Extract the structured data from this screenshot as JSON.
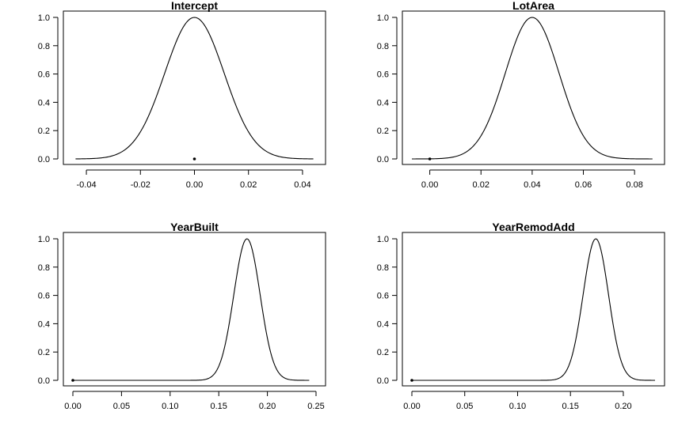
{
  "chart_data": [
    {
      "type": "line",
      "title": "Intercept",
      "xlabel": "",
      "ylabel": "",
      "xlim": [
        -0.045,
        0.045
      ],
      "ylim": [
        0,
        1
      ],
      "x_ticks": [
        -0.04,
        -0.02,
        0.0,
        0.02,
        0.04
      ],
      "x_tick_labels": [
        "-0.04",
        "-0.02",
        "0.00",
        "0.02",
        "0.04"
      ],
      "y_ticks": [
        0.0,
        0.2,
        0.4,
        0.6,
        0.8,
        1.0
      ],
      "y_tick_labels": [
        "0.0",
        "0.2",
        "0.4",
        "0.6",
        "0.8",
        "1.0"
      ],
      "curve": {
        "center": 0.0,
        "sd": 0.011,
        "peak": 1.0,
        "x_range": [
          -0.044,
          0.044
        ]
      },
      "point": {
        "x": 0.0,
        "y": 0.0
      }
    },
    {
      "type": "line",
      "title": "LotArea",
      "xlabel": "",
      "ylabel": "",
      "xlim": [
        -0.007,
        0.088
      ],
      "ylim": [
        0,
        1
      ],
      "x_ticks": [
        0.0,
        0.02,
        0.04,
        0.06,
        0.08
      ],
      "x_tick_labels": [
        "0.00",
        "0.02",
        "0.04",
        "0.06",
        "0.08"
      ],
      "y_ticks": [
        0.0,
        0.2,
        0.4,
        0.6,
        0.8,
        1.0
      ],
      "y_tick_labels": [
        "0.0",
        "0.2",
        "0.4",
        "0.6",
        "0.8",
        "1.0"
      ],
      "curve": {
        "center": 0.04,
        "sd": 0.0105,
        "peak": 1.0,
        "x_range": [
          -0.007,
          0.087
        ]
      },
      "point": {
        "x": 0.0,
        "y": 0.0
      }
    },
    {
      "type": "line",
      "title": "YearBuilt",
      "xlabel": "",
      "ylabel": "",
      "xlim": [
        0.0,
        0.25
      ],
      "ylim": [
        0,
        1
      ],
      "x_ticks": [
        0.0,
        0.05,
        0.1,
        0.15,
        0.2,
        0.25
      ],
      "x_tick_labels": [
        "0.00",
        "0.05",
        "0.10",
        "0.15",
        "0.20",
        "0.25"
      ],
      "y_ticks": [
        0.0,
        0.2,
        0.4,
        0.6,
        0.8,
        1.0
      ],
      "y_tick_labels": [
        "0.0",
        "0.2",
        "0.4",
        "0.6",
        "0.8",
        "1.0"
      ],
      "curve": {
        "center": 0.179,
        "sd": 0.0135,
        "peak": 1.0,
        "x_range": [
          0.0,
          0.243
        ]
      },
      "point": {
        "x": 0.0,
        "y": 0.0
      }
    },
    {
      "type": "line",
      "title": "YearRemodAdd",
      "xlabel": "",
      "ylabel": "",
      "xlim": [
        0.0,
        0.23
      ],
      "ylim": [
        0,
        1
      ],
      "x_ticks": [
        0.0,
        0.05,
        0.1,
        0.15,
        0.2
      ],
      "x_tick_labels": [
        "0.00",
        "0.05",
        "0.10",
        "0.15",
        "0.20"
      ],
      "y_ticks": [
        0.0,
        0.2,
        0.4,
        0.6,
        0.8,
        1.0
      ],
      "y_tick_labels": [
        "0.0",
        "0.2",
        "0.4",
        "0.6",
        "0.8",
        "1.0"
      ],
      "curve": {
        "center": 0.174,
        "sd": 0.012,
        "peak": 1.0,
        "x_range": [
          0.0,
          0.23
        ]
      },
      "point": {
        "x": 0.0,
        "y": 0.0
      }
    }
  ]
}
